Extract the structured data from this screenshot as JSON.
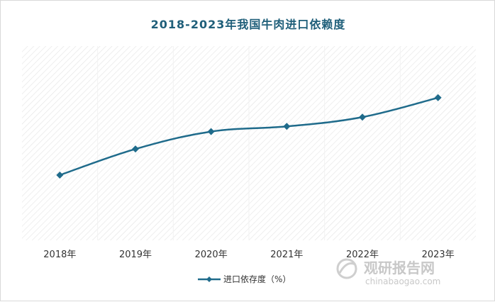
{
  "chart_data": {
    "type": "line",
    "title": "2018-2023年我国牛肉进口依赖度",
    "categories": [
      "2018年",
      "2019年",
      "2020年",
      "2021年",
      "2022年",
      "2023年"
    ],
    "series": [
      {
        "name": "进口依存度（%）",
        "values": [
          22.5,
          31.5,
          37.5,
          39.3,
          42.5,
          49.2
        ]
      }
    ],
    "ylim": [
      0,
      67
    ],
    "grid": false,
    "legend": "bottom",
    "line_color": "#1f6b8b"
  },
  "watermark": {
    "text_cn": "观研报告网",
    "text_en": "chinabaogao.com"
  }
}
